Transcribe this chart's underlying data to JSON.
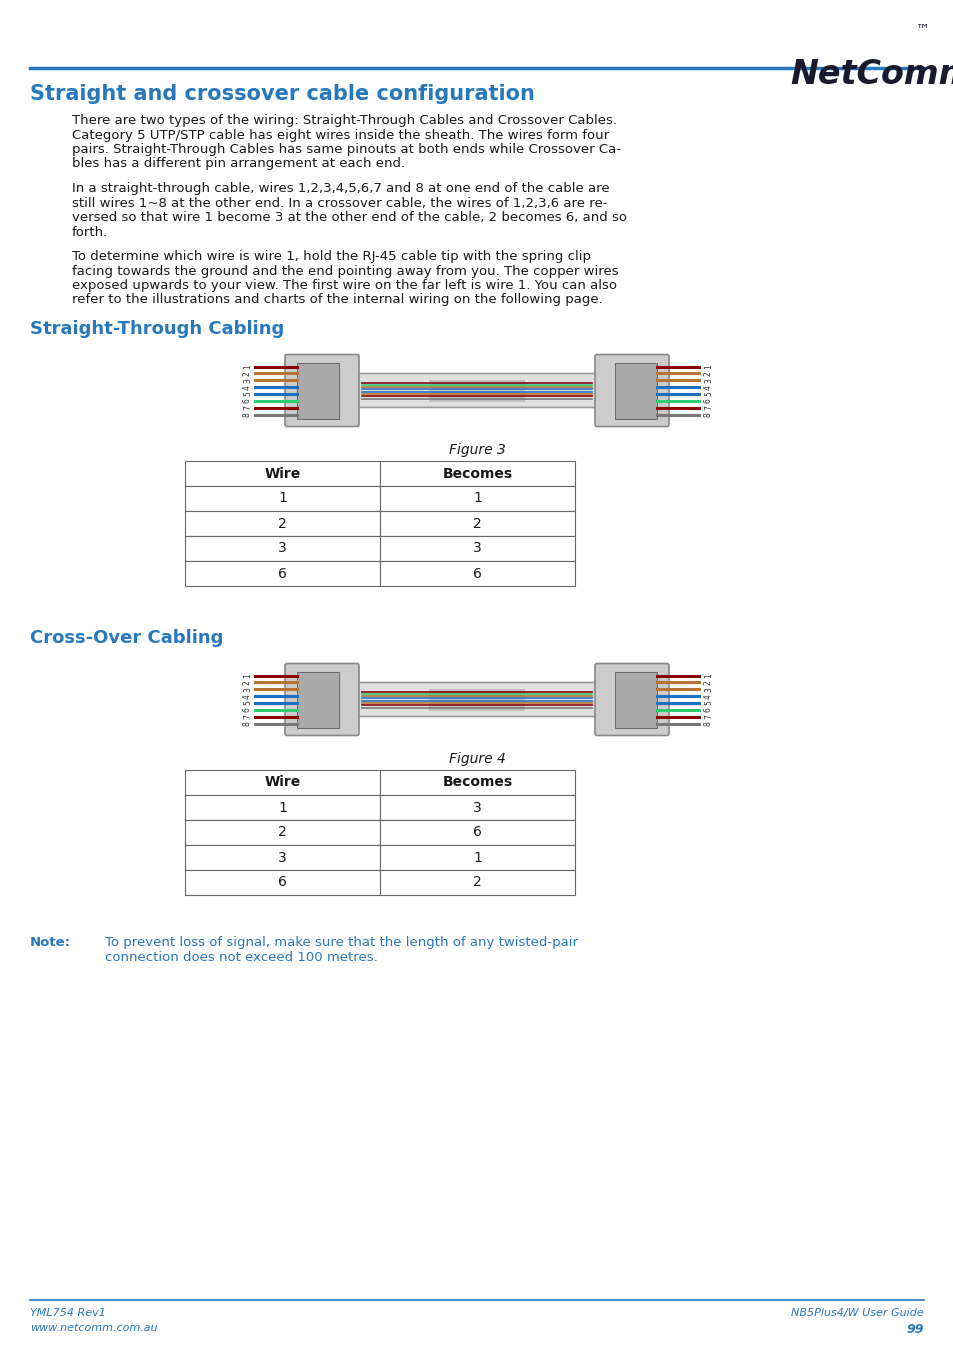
{
  "title": "Straight and crossover cable configuration",
  "title_color": "#2878BE",
  "header_line_color": "#2878BE",
  "background_color": "#FFFFFF",
  "logo_text": "NetComm",
  "logo_tm": "™",
  "section1_title": "Straight-Through Cabling",
  "section2_title": "Cross-Over Cabling",
  "section1_color": "#2878BE",
  "section2_color": "#2878BE",
  "body_text1": "There are two types of the wiring: Straight-Through Cables and Crossover Cables.\nCategory 5 UTP/STP cable has eight wires inside the sheath. The wires form four\npairs. Straight-Through Cables has same pinouts at both ends while Crossover Ca-\nbles has a different pin arrangement at each end.",
  "body_text2": "In a straight-through cable, wires 1,2,3,4,5,6,7 and 8 at one end of the cable are\nstill wires 1~8 at the other end. In a crossover cable, the wires of 1,2,3,6 are re-\nversed so that wire 1 become 3 at the other end of the cable, 2 becomes 6, and so\nforth.",
  "body_text3": "To determine which wire is wire 1, hold the RJ-45 cable tip with the spring clip\nfacing towards the ground and the end pointing away from you. The copper wires\nexposed upwards to your view. The first wire on the far left is wire 1. You can also\nrefer to the illustrations and charts of the internal wiring on the following page.",
  "fig3_caption": "Figure 3",
  "fig4_caption": "Figure 4",
  "table1_headers": [
    "Wire",
    "Becomes"
  ],
  "table1_rows": [
    [
      "1",
      "1"
    ],
    [
      "2",
      "2"
    ],
    [
      "3",
      "3"
    ],
    [
      "6",
      "6"
    ]
  ],
  "table2_headers": [
    "Wire",
    "Becomes"
  ],
  "table2_rows": [
    [
      "1",
      "3"
    ],
    [
      "2",
      "6"
    ],
    [
      "3",
      "1"
    ],
    [
      "6",
      "2"
    ]
  ],
  "note_label": "Note:",
  "note_text": "To prevent loss of signal, make sure that the length of any twisted-pair\nconnection does not exceed 100 metres.",
  "note_color": "#2878BE",
  "footer_left1": "YML754 Rev1",
  "footer_left2": "www.netcomm.com.au",
  "footer_right1": "NB5Plus4/W User Guide",
  "footer_right2": "99",
  "footer_color": "#2878BE",
  "text_color": "#1a1a1a",
  "body_font_size": 9.5,
  "table_font_size": 10,
  "wire_colors_left": [
    "#8B0000",
    "#b87333",
    "#b87333",
    "#1f6fbf",
    "#1f6fbf",
    "#2ecc71",
    "#8B0000",
    "#777777"
  ],
  "wire_colors_mid": [
    "#8B0000",
    "#2ecc71",
    "#b87333",
    "#1f6fbf",
    "#1f6fbf",
    "#b87333",
    "#8B0000",
    "#777777"
  ]
}
